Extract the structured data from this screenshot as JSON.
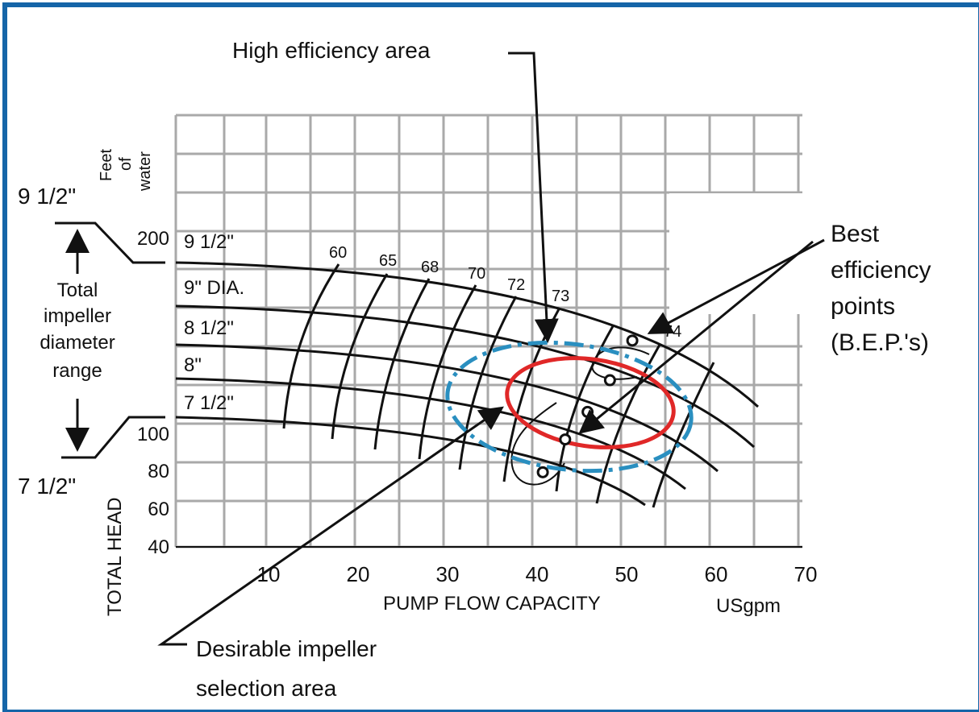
{
  "chart_data": {
    "type": "line",
    "title": "",
    "xlabel": "PUMP FLOW CAPACITY",
    "xunit": "USgpm",
    "ylabel": "TOTAL HEAD",
    "yunit_lines": [
      "Feet",
      "of",
      "water"
    ],
    "x_ticks": [
      10,
      20,
      30,
      40,
      50,
      60,
      70
    ],
    "y_ticks": [
      40,
      60,
      80,
      100,
      200
    ],
    "grid": true,
    "impeller_curves": [
      {
        "name": "9 1/2\""
      },
      {
        "name": "9\" DIA."
      },
      {
        "name": "8 1/2\""
      },
      {
        "name": "8\""
      },
      {
        "name": "7 1/2\""
      }
    ],
    "efficiency_labels": [
      "60",
      "65",
      "68",
      "70",
      "72",
      "73",
      "74"
    ],
    "best_efficiency_points": [
      {
        "x": 51,
        "y": 146
      },
      {
        "x": 48.5,
        "y": 126
      },
      {
        "x": 46,
        "y": 110
      },
      {
        "x": 43.5,
        "y": 96
      },
      {
        "x": 41,
        "y": 79
      }
    ],
    "range_labels": {
      "top": "9 1/2\"",
      "bottom": "7 1/2\"",
      "middle_lines": [
        "Total",
        "impeller",
        "diameter",
        "range"
      ]
    },
    "annotations": {
      "high_efficiency": "High efficiency area",
      "bep_lines": [
        "Best",
        "efficiency",
        "points",
        "(B.E.P.'s)"
      ],
      "desirable_lines": [
        "Desirable impeller",
        "selection area"
      ]
    },
    "colors": {
      "frame": "#1565a8",
      "grid": "#a9a9a9",
      "curves": "#111111",
      "desirable_area": "#2a8fc0",
      "high_efficiency_area": "#e02828"
    }
  }
}
